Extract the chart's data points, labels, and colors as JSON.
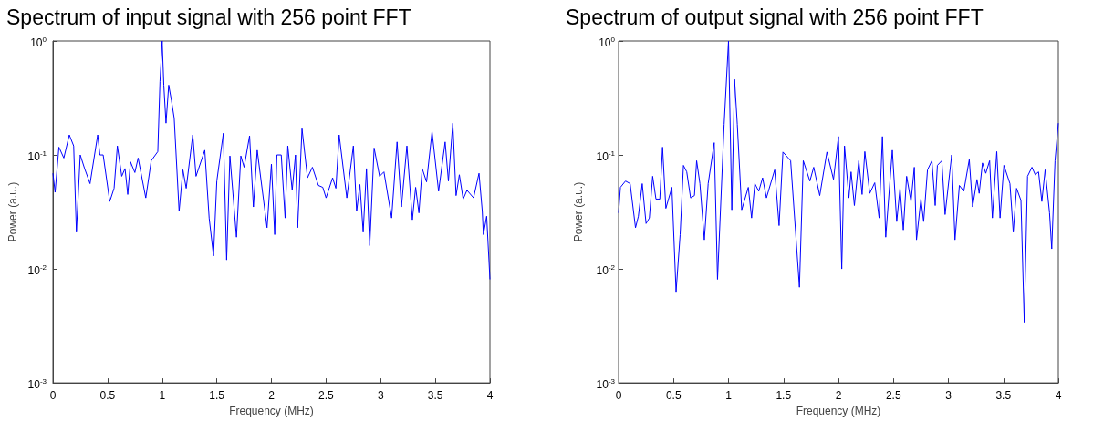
{
  "chart_data": [
    {
      "type": "line",
      "title": "Spectrum of input signal with 256 point FFT",
      "xlabel": "Frequency (MHz)",
      "ylabel": "Power (a.u.)",
      "log": "y",
      "grid": false,
      "marker": "none",
      "line_style": "solid",
      "xlim": [
        0,
        4
      ],
      "xticks": [
        0,
        0.5,
        1,
        1.5,
        2,
        2.5,
        3,
        3.5,
        4
      ],
      "ylim": [
        0.001,
        1
      ],
      "yticks": [
        {
          "value": 0.001,
          "label": "10$^{-3}$"
        },
        {
          "value": 0.01,
          "label": "10$^{-2}$"
        },
        {
          "value": 0.1,
          "label": "10$^{-1}$"
        },
        {
          "value": 1,
          "label": "10$^{0}$"
        }
      ],
      "series": [
        {
          "color": "#0000ff",
          "x": [
            0,
            0.02,
            0.055,
            0.1,
            0.15,
            0.19,
            0.215,
            0.25,
            0.29,
            0.34,
            0.41,
            0.43,
            0.46,
            0.52,
            0.56,
            0.59,
            0.63,
            0.66,
            0.685,
            0.71,
            0.75,
            0.78,
            0.85,
            0.9,
            0.96,
            0.98,
            1.0,
            1.015,
            1.035,
            1.06,
            1.085,
            1.11,
            1.155,
            1.19,
            1.22,
            1.28,
            1.31,
            1.39,
            1.43,
            1.47,
            1.5,
            1.56,
            1.59,
            1.62,
            1.68,
            1.72,
            1.75,
            1.8,
            1.835,
            1.87,
            1.96,
            2.0,
            2.03,
            2.05,
            2.09,
            2.125,
            2.15,
            2.19,
            2.22,
            2.24,
            2.28,
            2.33,
            2.375,
            2.43,
            2.47,
            2.5,
            2.56,
            2.59,
            2.62,
            2.69,
            2.75,
            2.78,
            2.81,
            2.84,
            2.87,
            2.9,
            2.94,
            2.99,
            3.03,
            3.1,
            3.15,
            3.19,
            3.24,
            3.29,
            3.32,
            3.35,
            3.38,
            3.42,
            3.47,
            3.53,
            3.59,
            3.62,
            3.66,
            3.69,
            3.72,
            3.755,
            3.79,
            3.85,
            3.9,
            3.93,
            3.94,
            3.97,
            4.0
          ],
          "values": [
            0.069,
            0.047,
            0.117,
            0.094,
            0.15,
            0.12,
            0.021,
            0.1,
            0.076,
            0.056,
            0.15,
            0.1,
            0.1,
            0.039,
            0.051,
            0.12,
            0.065,
            0.076,
            0.045,
            0.087,
            0.07,
            0.094,
            0.042,
            0.089,
            0.107,
            0.44,
            1.0,
            0.41,
            0.19,
            0.41,
            0.3,
            0.21,
            0.032,
            0.074,
            0.051,
            0.15,
            0.065,
            0.11,
            0.028,
            0.013,
            0.059,
            0.155,
            0.012,
            0.098,
            0.019,
            0.098,
            0.078,
            0.147,
            0.035,
            0.11,
            0.023,
            0.083,
            0.02,
            0.1,
            0.1,
            0.028,
            0.12,
            0.049,
            0.1,
            0.023,
            0.17,
            0.063,
            0.078,
            0.054,
            0.052,
            0.042,
            0.063,
            0.051,
            0.15,
            0.042,
            0.12,
            0.032,
            0.055,
            0.021,
            0.076,
            0.016,
            0.115,
            0.065,
            0.071,
            0.028,
            0.13,
            0.035,
            0.12,
            0.027,
            0.052,
            0.031,
            0.076,
            0.058,
            0.16,
            0.048,
            0.13,
            0.059,
            0.19,
            0.044,
            0.067,
            0.041,
            0.049,
            0.042,
            0.069,
            0.032,
            0.02,
            0.029,
            0.0081
          ]
        }
      ]
    },
    {
      "type": "line",
      "title": "Spectrum of output signal with 256 point FFT",
      "xlabel": "Frequency (MHz)",
      "ylabel": "Power (a.u.)",
      "log": "y",
      "grid": false,
      "marker": "none",
      "line_style": "solid",
      "xlim": [
        0,
        4
      ],
      "xticks": [
        0,
        0.5,
        1,
        1.5,
        2,
        2.5,
        3,
        3.5,
        4
      ],
      "ylim": [
        0.001,
        1
      ],
      "yticks": [
        {
          "value": 0.001,
          "label": "10$^{-3}$"
        },
        {
          "value": 0.01,
          "label": "10$^{-2}$"
        },
        {
          "value": 0.1,
          "label": "10$^{-1}$"
        },
        {
          "value": 1,
          "label": "10$^{0}$"
        }
      ],
      "series": [
        {
          "color": "#0000ff",
          "x": [
            0,
            0.017,
            0.063,
            0.105,
            0.154,
            0.18,
            0.215,
            0.25,
            0.28,
            0.31,
            0.34,
            0.375,
            0.4,
            0.43,
            0.485,
            0.523,
            0.56,
            0.59,
            0.62,
            0.655,
            0.69,
            0.71,
            0.74,
            0.78,
            0.815,
            0.87,
            0.9,
            0.96,
            1.0,
            1.03,
            1.055,
            1.08,
            1.12,
            1.18,
            1.21,
            1.24,
            1.275,
            1.31,
            1.345,
            1.42,
            1.46,
            1.495,
            1.565,
            1.645,
            1.68,
            1.74,
            1.775,
            1.83,
            1.895,
            1.955,
            2.0,
            2.03,
            2.055,
            2.095,
            2.115,
            2.145,
            2.185,
            2.215,
            2.24,
            2.285,
            2.33,
            2.37,
            2.4,
            2.43,
            2.49,
            2.53,
            2.56,
            2.59,
            2.62,
            2.66,
            2.69,
            2.71,
            2.75,
            2.775,
            2.81,
            2.85,
            2.88,
            2.9,
            2.94,
            2.97,
            3.03,
            3.06,
            3.1,
            3.14,
            3.19,
            3.22,
            3.26,
            3.28,
            3.31,
            3.34,
            3.375,
            3.4,
            3.44,
            3.47,
            3.505,
            3.56,
            3.59,
            3.62,
            3.66,
            3.69,
            3.72,
            3.76,
            3.79,
            3.82,
            3.85,
            3.88,
            3.92,
            3.94,
            3.97,
            4.0
          ],
          "values": [
            0.031,
            0.052,
            0.059,
            0.056,
            0.023,
            0.029,
            0.056,
            0.025,
            0.028,
            0.065,
            0.041,
            0.041,
            0.117,
            0.034,
            0.052,
            0.0063,
            0.02,
            0.081,
            0.071,
            0.042,
            0.044,
            0.089,
            0.056,
            0.018,
            0.056,
            0.128,
            0.0081,
            0.185,
            1.0,
            0.033,
            0.46,
            0.185,
            0.033,
            0.052,
            0.028,
            0.056,
            0.048,
            0.063,
            0.042,
            0.074,
            0.024,
            0.106,
            0.089,
            0.0069,
            0.089,
            0.059,
            0.078,
            0.044,
            0.106,
            0.061,
            0.145,
            0.01,
            0.12,
            0.042,
            0.071,
            0.036,
            0.089,
            0.045,
            0.107,
            0.046,
            0.057,
            0.028,
            0.145,
            0.019,
            0.11,
            0.026,
            0.051,
            0.022,
            0.065,
            0.039,
            0.078,
            0.018,
            0.041,
            0.026,
            0.074,
            0.089,
            0.036,
            0.081,
            0.089,
            0.03,
            0.1,
            0.018,
            0.054,
            0.048,
            0.091,
            0.035,
            0.061,
            0.046,
            0.085,
            0.069,
            0.089,
            0.028,
            0.107,
            0.028,
            0.081,
            0.056,
            0.021,
            0.051,
            0.04,
            0.0034,
            0.065,
            0.078,
            0.067,
            0.071,
            0.039,
            0.074,
            0.031,
            0.015,
            0.089,
            0.19
          ]
        }
      ]
    }
  ]
}
